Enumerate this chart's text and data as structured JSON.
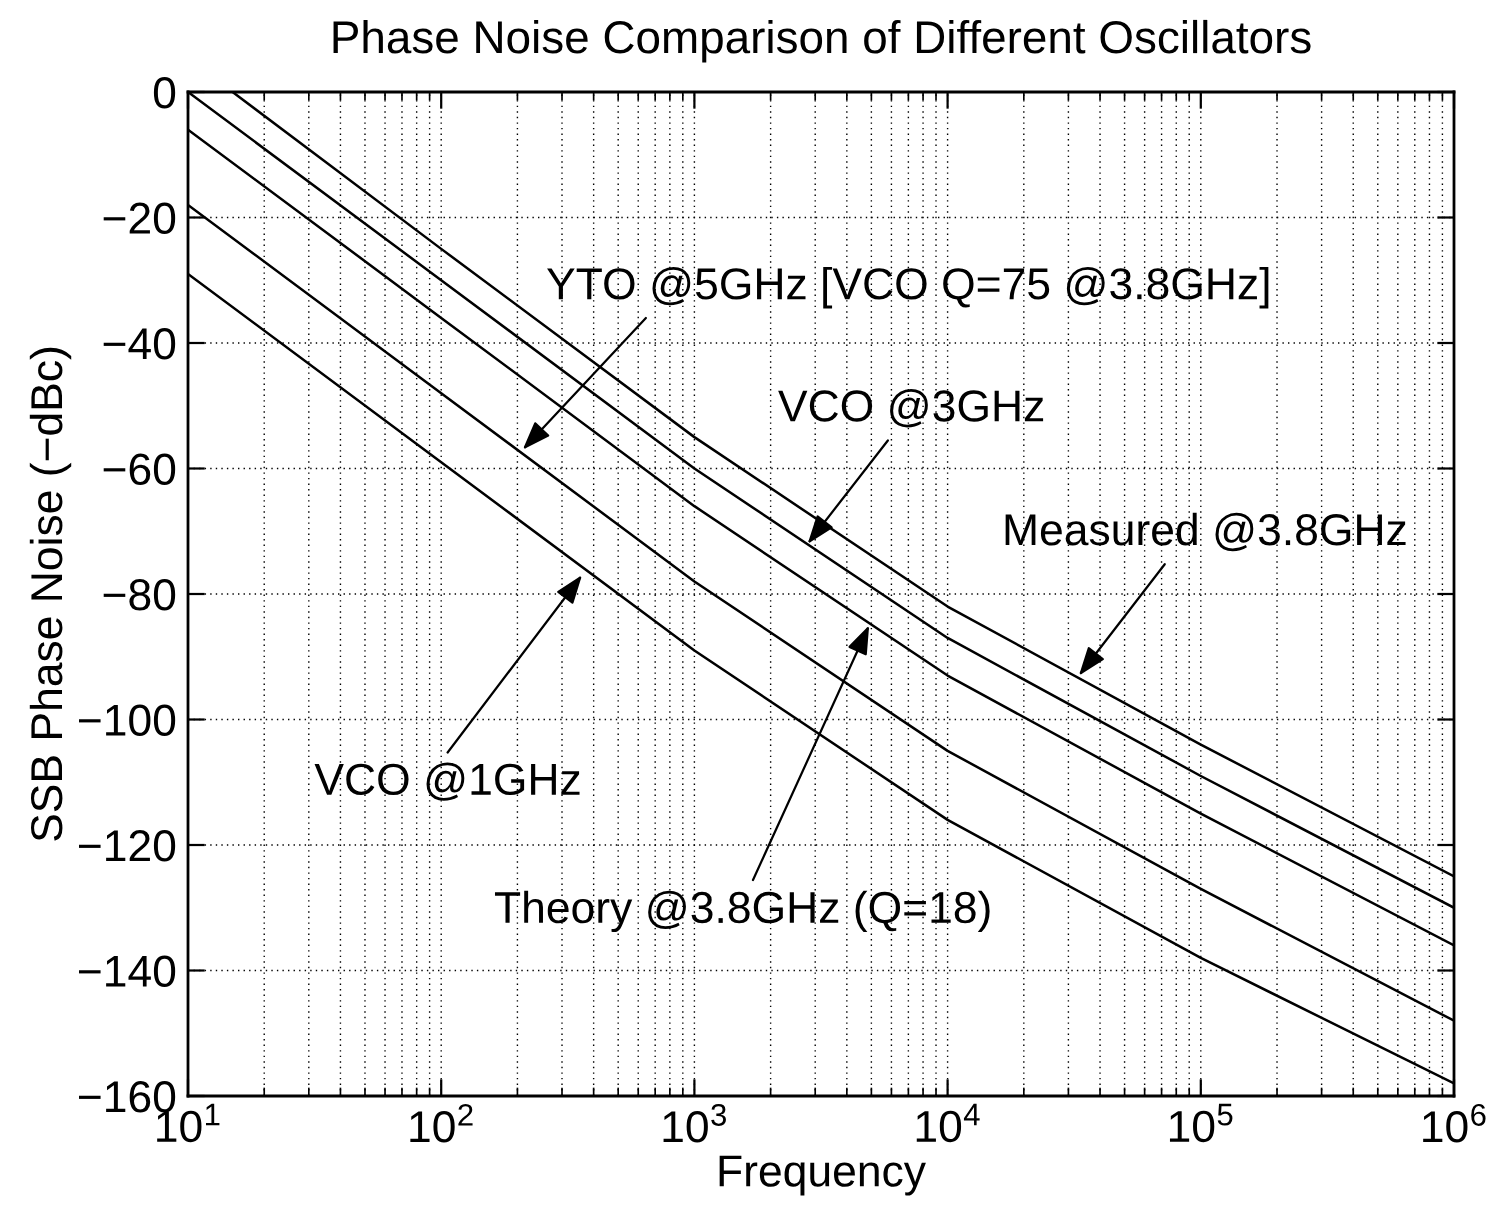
{
  "chart_data": {
    "type": "line",
    "title": "Phase Noise Comparison of Different Oscillators",
    "xlabel": "Frequency",
    "ylabel": "SSB Phase Noise (−dBc)",
    "x": [
      10,
      100,
      1000,
      10000,
      100000,
      1000000
    ],
    "series": [
      {
        "color": "#000000",
        "x": [
          15,
          100,
          1000,
          10000,
          100000,
          1000000
        ],
        "values": [
          0,
          -25,
          -55,
          -82,
          -104,
          -125
        ]
      },
      {
        "color": "#000000",
        "values": [
          0,
          -30,
          -60,
          -87,
          -109,
          -130
        ]
      },
      {
        "color": "#000000",
        "values": [
          -6,
          -36,
          -66,
          -93,
          -115,
          -136
        ]
      },
      {
        "color": "#000000",
        "values": [
          -18,
          -48,
          -78,
          -105,
          -127,
          -148
        ]
      },
      {
        "color": "#000000",
        "values": [
          -29,
          -59,
          -89,
          -116,
          -138,
          -158
        ]
      }
    ],
    "xlim": [
      10,
      1000000
    ],
    "ylim": [
      -160,
      0
    ],
    "log": "x",
    "xticks": [
      {
        "value": 10,
        "label": "10$^{1}$"
      },
      {
        "value": 100,
        "label": "10$^{2}$"
      },
      {
        "value": 1000,
        "label": "10$^{3}$"
      },
      {
        "value": 10000,
        "label": "10$^{4}$"
      },
      {
        "value": 100000,
        "label": "10$^{5}$"
      },
      {
        "value": 1000000,
        "label": "10$^{6}$"
      }
    ],
    "yticks": [
      {
        "value": -160,
        "label": "−160"
      },
      {
        "value": -140,
        "label": "−140"
      },
      {
        "value": -120,
        "label": "−120"
      },
      {
        "value": -100,
        "label": "−100"
      },
      {
        "value": -80,
        "label": "−80"
      },
      {
        "value": -60,
        "label": "−60"
      },
      {
        "value": -40,
        "label": "−40"
      },
      {
        "value": -20,
        "label": "−20"
      },
      0
    ],
    "grid": true,
    "line_style": "solid",
    "marker": "none",
    "annotations": [
      {
        "text": "YTO @5GHz [VCO Q=75 @3.8GHz]",
        "x": 210,
        "y": -57
      },
      {
        "text": "VCO @3GHz",
        "x": 2800,
        "y": -72
      },
      {
        "text": "Measured @3.8GHz",
        "x": 33000,
        "y": -93
      },
      {
        "text": "VCO @1GHz",
        "x": 360,
        "y": -77
      },
      {
        "text": "Theory @3.8GHz (Q=18)",
        "x": 4900,
        "y": -85
      }
    ]
  }
}
